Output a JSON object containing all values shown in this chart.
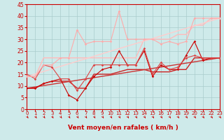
{
  "xlabel": "Vent moyen/en rafales ( km/h )",
  "xlim": [
    0,
    23
  ],
  "ylim": [
    0,
    45
  ],
  "yticks": [
    0,
    5,
    10,
    15,
    20,
    25,
    30,
    35,
    40,
    45
  ],
  "xticks": [
    0,
    1,
    2,
    3,
    4,
    5,
    6,
    7,
    8,
    9,
    10,
    11,
    12,
    13,
    14,
    15,
    16,
    17,
    18,
    19,
    20,
    21,
    22,
    23
  ],
  "bg_color": "#ceeaea",
  "grid_color": "#aacccc",
  "lines": [
    {
      "x": [
        0,
        1,
        2,
        3,
        4,
        5,
        6,
        7,
        8,
        9,
        10,
        11,
        12,
        13,
        14,
        15,
        16,
        17,
        18,
        19,
        20,
        21,
        22,
        23
      ],
      "y": [
        9,
        9,
        11,
        12,
        13,
        6,
        4,
        9,
        14,
        17,
        18,
        25,
        19,
        19,
        25,
        14,
        19,
        17,
        17,
        23,
        29,
        21,
        22,
        22
      ],
      "color": "#cc0000",
      "lw": 0.8,
      "marker": "D",
      "ms": 1.8
    },
    {
      "x": [
        0,
        1,
        2,
        3,
        4,
        5,
        6,
        7,
        8,
        9,
        10,
        11,
        12,
        13,
        14,
        15,
        16,
        17,
        18,
        19,
        20,
        21,
        22,
        23
      ],
      "y": [
        15,
        13,
        19,
        18,
        13,
        13,
        8,
        13,
        19,
        19,
        19,
        19,
        19,
        19,
        26,
        15,
        20,
        17,
        18,
        22,
        23,
        22,
        22,
        22
      ],
      "color": "#dd4444",
      "lw": 0.8,
      "marker": "D",
      "ms": 1.8
    },
    {
      "x": [
        0,
        1,
        2,
        3,
        4,
        5,
        6,
        7,
        8,
        9,
        10,
        11,
        12,
        13,
        14,
        15,
        16,
        17,
        18,
        19,
        20,
        21,
        22,
        23
      ],
      "y": [
        14,
        14,
        19,
        19,
        22,
        22,
        34,
        28,
        29,
        29,
        29,
        42,
        30,
        30,
        30,
        30,
        28,
        29,
        28,
        29,
        39,
        39,
        39,
        39
      ],
      "color": "#ffaaaa",
      "lw": 0.8,
      "marker": "D",
      "ms": 1.8
    },
    {
      "x": [
        0,
        1,
        2,
        3,
        4,
        5,
        6,
        7,
        8,
        9,
        10,
        11,
        12,
        13,
        14,
        15,
        16,
        17,
        18,
        19,
        20,
        21,
        22,
        23
      ],
      "y": [
        9,
        9,
        11,
        12,
        12,
        12,
        9,
        9,
        15,
        15,
        15,
        16,
        17,
        17,
        17,
        16,
        16,
        16,
        17,
        17,
        22,
        22,
        22,
        22
      ],
      "color": "#cc2222",
      "lw": 1.0,
      "marker": null,
      "ms": 0
    },
    {
      "x": [
        0,
        1,
        2,
        3,
        4,
        5,
        6,
        7,
        8,
        9,
        10,
        11,
        12,
        13,
        14,
        15,
        16,
        17,
        18,
        19,
        20,
        21,
        22,
        23
      ],
      "y": [
        14,
        14,
        22,
        22,
        22,
        22,
        22,
        22,
        22,
        22,
        22,
        22,
        22,
        22,
        30,
        30,
        30,
        30,
        32,
        32,
        36,
        36,
        39,
        39
      ],
      "color": "#ffbbbb",
      "lw": 1.0,
      "marker": null,
      "ms": 0
    },
    {
      "x": [
        0,
        23
      ],
      "y": [
        9,
        22
      ],
      "color": "#cc3333",
      "lw": 1.0,
      "marker": null,
      "ms": 0
    },
    {
      "x": [
        0,
        23
      ],
      "y": [
        14,
        39
      ],
      "color": "#ffcccc",
      "lw": 1.0,
      "marker": null,
      "ms": 0
    }
  ],
  "arrow_color": "#cc0000",
  "axis_color": "#cc0000",
  "tick_color": "#cc0000",
  "xlabel_color": "#cc0000",
  "xlabel_fontsize": 6.5,
  "xlabel_fontweight": "bold",
  "tick_fontsize_x": 5.0,
  "tick_fontsize_y": 5.5
}
